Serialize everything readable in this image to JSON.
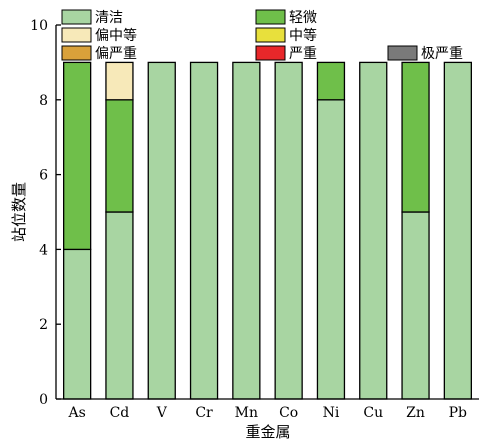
{
  "chart_data": {
    "type": "bar",
    "stacked": true,
    "xlabel": "重金属",
    "ylabel": "站位数量",
    "ylim": [
      0,
      10
    ],
    "yticks": [
      0,
      2,
      4,
      6,
      8,
      10
    ],
    "categories": [
      "As",
      "Cd",
      "V",
      "Cr",
      "Mn",
      "Co",
      "Ni",
      "Cu",
      "Zn",
      "Pb"
    ],
    "series": [
      {
        "name": "清洁",
        "color": "#a8d5a2",
        "values": [
          4,
          5,
          9,
          9,
          9,
          9,
          8,
          9,
          5,
          9
        ]
      },
      {
        "name": "轻微",
        "color": "#6fbf4a",
        "values": [
          5,
          3,
          0,
          0,
          0,
          0,
          1,
          0,
          4,
          0
        ]
      },
      {
        "name": "偏中等",
        "color": "#f7e9b9",
        "values": [
          0,
          1,
          0,
          0,
          0,
          0,
          0,
          0,
          0,
          0
        ]
      },
      {
        "name": "中等",
        "color": "#e8e03c",
        "values": [
          0,
          0,
          0,
          0,
          0,
          0,
          0,
          0,
          0,
          0
        ]
      },
      {
        "name": "偏严重",
        "color": "#d9a13a",
        "values": [
          0,
          0,
          0,
          0,
          0,
          0,
          0,
          0,
          0,
          0
        ]
      },
      {
        "name": "严重",
        "color": "#e8272a",
        "values": [
          0,
          0,
          0,
          0,
          0,
          0,
          0,
          0,
          0,
          0
        ]
      },
      {
        "name": "极严重",
        "color": "#7a7a7a",
        "values": [
          0,
          0,
          0,
          0,
          0,
          0,
          0,
          0,
          0,
          0
        ]
      }
    ],
    "grid": false,
    "legend_position": "top"
  }
}
